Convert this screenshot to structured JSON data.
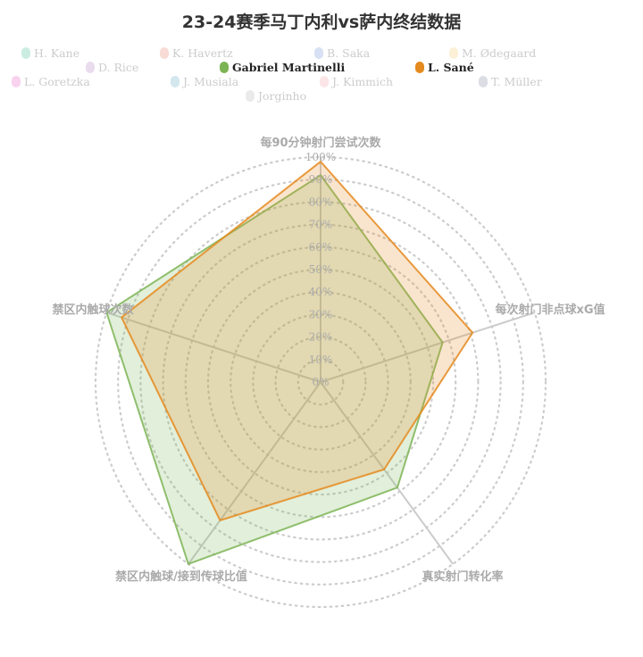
{
  "chart_data": {
    "type": "radar",
    "title": "23-24赛季马丁内利vs萨内终结数据",
    "indicators": [
      "每90分钟射门尝试次数",
      "每次射门非点球xG值",
      "真实射门转化率",
      "禁区内触球/接到传球比值",
      "禁区内触球次数"
    ],
    "tick_labels": [
      "0%",
      "10%",
      "20%",
      "30%",
      "40%",
      "50%",
      "60%",
      "70%",
      "80%",
      "90%",
      "100%"
    ],
    "range": [
      0,
      100
    ],
    "legend": [
      {
        "name": "H. Kane",
        "color": "#4fbf9b",
        "active": false
      },
      {
        "name": "K. Havertz",
        "color": "#e88870",
        "active": false
      },
      {
        "name": "B. Saka",
        "color": "#7a9ad8",
        "active": false
      },
      {
        "name": "M. Ødegaard",
        "color": "#f4d07a",
        "active": false
      },
      {
        "name": "D. Rice",
        "color": "#b88ac8",
        "active": false
      },
      {
        "name": "Gabriel Martinelli",
        "color": "#7cb455",
        "active": true
      },
      {
        "name": "L. Sané",
        "color": "#e58a1f",
        "active": true
      },
      {
        "name": "L. Goretzka",
        "color": "#e86ac8",
        "active": false
      },
      {
        "name": "J. Musiala",
        "color": "#6ab0c8",
        "active": false
      },
      {
        "name": "J. Kimmich",
        "color": "#f2a8b0",
        "active": false
      },
      {
        "name": "T. Müller",
        "color": "#8a8aaa",
        "active": false
      },
      {
        "name": "Jorginho",
        "color": "#bbbbbb",
        "active": false
      }
    ],
    "series": [
      {
        "name": "Gabriel Martinelli",
        "color": "#7cb455",
        "values": [
          92,
          57,
          58,
          100,
          100
        ]
      },
      {
        "name": "L. Sané",
        "color": "#e58a1f",
        "values": [
          98,
          71,
          48,
          76,
          93
        ]
      }
    ]
  }
}
